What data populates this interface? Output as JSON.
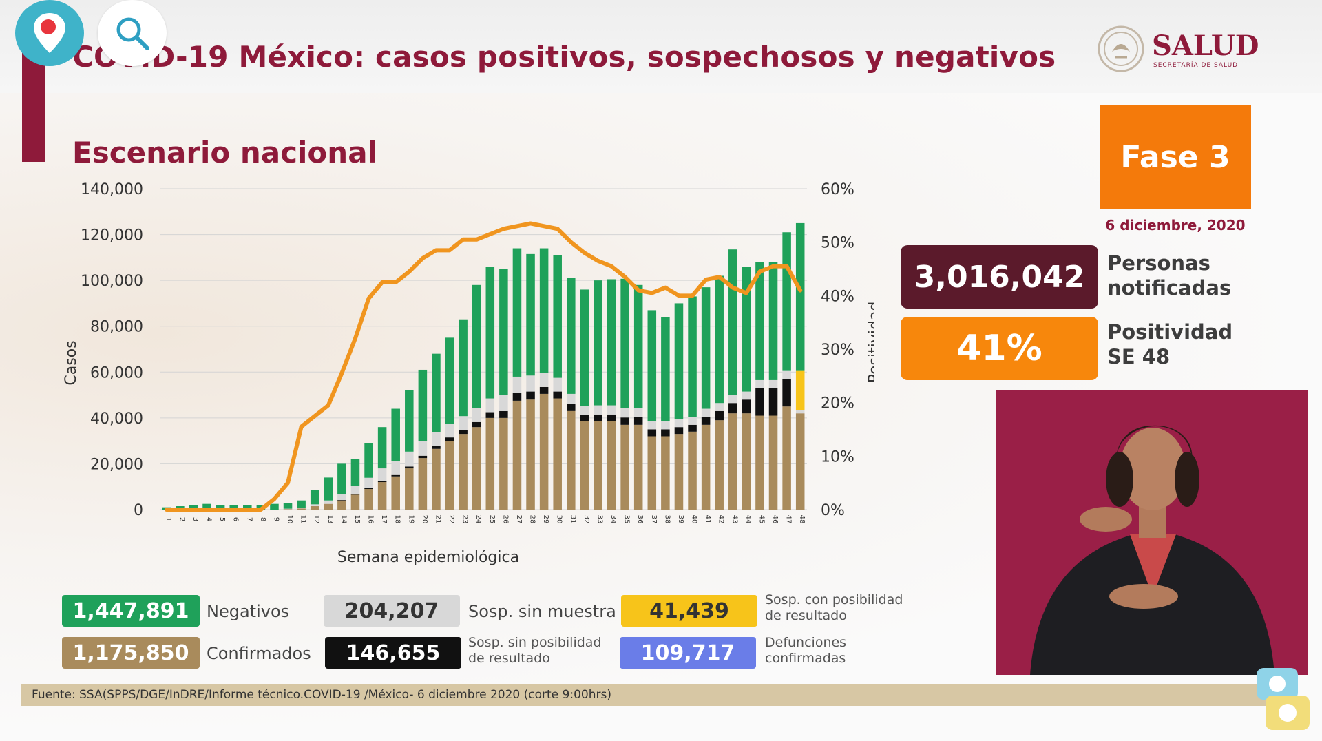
{
  "header": {
    "title": "COVID-19 México: casos positivos, sospechosos y negativos",
    "subtitle": "Escenario nacional",
    "logo_text": "SALUD",
    "logo_subtext": "SECRETARÍA DE SALUD"
  },
  "overlay_buttons": {
    "location_icon": "map-pin-icon",
    "search_icon": "search-icon"
  },
  "fase": {
    "label": "Fase 3",
    "date": "6 diciembre, 2020"
  },
  "stats": {
    "personas_value": "3,016,042",
    "personas_label_1": "Personas",
    "personas_label_2": "notificadas",
    "positividad_value": "41%",
    "positividad_label_1": "Positividad",
    "positividad_label_2": "SE 48"
  },
  "legend": {
    "negativos_value": "1,447,891",
    "negativos_label": "Negativos",
    "sin_muestra_value": "204,207",
    "sin_muestra_label": "Sosp. sin muestra",
    "con_posibilidad_value": "41,439",
    "con_posibilidad_label_1": "Sosp. con posibilidad",
    "con_posibilidad_label_2": "de resultado",
    "confirmados_value": "1,175,850",
    "confirmados_label": "Confirmados",
    "sin_posibilidad_value": "146,655",
    "sin_posibilidad_label_1": "Sosp. sin posibilidad",
    "sin_posibilidad_label_2": "de resultado",
    "defunciones_value": "109,717",
    "defunciones_label_1": "Defunciones",
    "defunciones_label_2": "confirmadas"
  },
  "footer": {
    "source": "Fuente: SSA(SPPS/DGE/InDRE/Informe técnico.COVID-19 /México- 6 diciembre 2020 (corte 9:00hrs)"
  },
  "colors": {
    "confirmados": "#a98b5c",
    "sin_posibilidad": "#111111",
    "sin_muestra": "#d8d8d8",
    "con_posibilidad": "#f7c41a",
    "negativos": "#1fa15a",
    "positividad_line": "#f0951f",
    "defunciones": "#6a7de8",
    "accent": "#8e1a3a",
    "fase": "#f47a0b"
  },
  "chart_data": {
    "type": "bar",
    "stacked": true,
    "xlabel": "Semana epidemiológica",
    "ylabel": "Casos",
    "y2label": "Positividad",
    "ylim": [
      0,
      140000
    ],
    "y2lim": [
      0,
      60
    ],
    "yticks": [
      "0",
      "20,000",
      "40,000",
      "60,000",
      "80,000",
      "100,000",
      "120,000",
      "140,000"
    ],
    "y2ticks": [
      "0%",
      "10%",
      "20%",
      "30%",
      "40%",
      "50%",
      "60%"
    ],
    "grid": true,
    "categories": [
      "1",
      "2",
      "3",
      "4",
      "5",
      "6",
      "7",
      "8",
      "9",
      "10",
      "11",
      "12",
      "13",
      "14",
      "15",
      "16",
      "17",
      "18",
      "19",
      "20",
      "21",
      "22",
      "23",
      "24",
      "25",
      "26",
      "27",
      "28",
      "29",
      "30",
      "31",
      "32",
      "33",
      "34",
      "35",
      "36",
      "37",
      "38",
      "39",
      "40",
      "41",
      "42",
      "43",
      "44",
      "45",
      "46",
      "47",
      "48"
    ],
    "series": [
      {
        "name": "Confirmados",
        "values": [
          0,
          0,
          0,
          0,
          0,
          0,
          0,
          0,
          0,
          200,
          500,
          1500,
          2500,
          4000,
          6500,
          9000,
          12000,
          14500,
          18000,
          22500,
          26500,
          30000,
          33000,
          36000,
          40000,
          40000,
          47500,
          48000,
          50500,
          48500,
          43000,
          38500,
          38500,
          38500,
          37000,
          37000,
          32000,
          32000,
          33000,
          34000,
          37000,
          39000,
          42000,
          42000,
          41000,
          41000,
          45000,
          42000
        ]
      },
      {
        "name": "Sosp. sin posibilidad de resultado",
        "values": [
          0,
          0,
          0,
          0,
          0,
          0,
          0,
          0,
          0,
          0,
          0,
          0,
          0,
          200,
          300,
          400,
          500,
          600,
          800,
          1000,
          1300,
          1500,
          1800,
          2200,
          2500,
          3000,
          3500,
          3500,
          3000,
          3000,
          3000,
          2800,
          3000,
          3000,
          3200,
          3400,
          3000,
          3000,
          3000,
          3000,
          3500,
          4000,
          4500,
          6000,
          12000,
          12000,
          12000,
          0
        ]
      },
      {
        "name": "Sosp. sin muestra",
        "values": [
          0,
          0,
          0,
          0,
          0,
          0,
          0,
          0,
          0,
          200,
          300,
          800,
          1500,
          2500,
          3500,
          4500,
          5500,
          6000,
          6500,
          6500,
          6000,
          6000,
          6000,
          6000,
          6000,
          7000,
          7000,
          7000,
          6000,
          6000,
          4500,
          4000,
          4000,
          4000,
          4000,
          4000,
          3500,
          3500,
          3500,
          3500,
          3500,
          3500,
          3500,
          3500,
          3500,
          3500,
          3500,
          1500
        ]
      },
      {
        "name": "Sosp. con posibilidad de resultado",
        "values": [
          0,
          0,
          0,
          0,
          0,
          0,
          0,
          0,
          0,
          0,
          0,
          0,
          0,
          0,
          0,
          0,
          0,
          0,
          0,
          0,
          0,
          0,
          0,
          0,
          0,
          0,
          0,
          0,
          0,
          0,
          0,
          0,
          0,
          0,
          0,
          0,
          0,
          0,
          0,
          0,
          0,
          0,
          0,
          0,
          0,
          0,
          0,
          17000
        ]
      },
      {
        "name": "Negativos",
        "values": [
          1000,
          1500,
          2000,
          2500,
          2000,
          2000,
          2000,
          2000,
          2500,
          2400,
          3200,
          6200,
          10000,
          13300,
          11700,
          15100,
          18000,
          22900,
          26700,
          31000,
          34200,
          37500,
          42200,
          53800,
          57500,
          55000,
          56000,
          53000,
          54500,
          53500,
          50500,
          50700,
          54500,
          55000,
          56500,
          53600,
          48500,
          45500,
          50500,
          52500,
          53000,
          55500,
          63500,
          54500,
          51500,
          51500,
          60500,
          64500
        ]
      }
    ],
    "line": {
      "name": "Positividad",
      "axis": "y2",
      "values": [
        0,
        0,
        0,
        0,
        0,
        0,
        0,
        0,
        2,
        5,
        15.5,
        17.5,
        19.5,
        25.5,
        32,
        39.5,
        42.5,
        42.5,
        44.5,
        47,
        48.5,
        48.5,
        50.5,
        50.5,
        51.5,
        52.5,
        53,
        53.5,
        53,
        52.5,
        50,
        48,
        46.5,
        45.5,
        43.5,
        41,
        40.5,
        41.5,
        40,
        40,
        43,
        43.5,
        41.5,
        40.5,
        44.5,
        45.5,
        45.5,
        41
      ]
    }
  }
}
